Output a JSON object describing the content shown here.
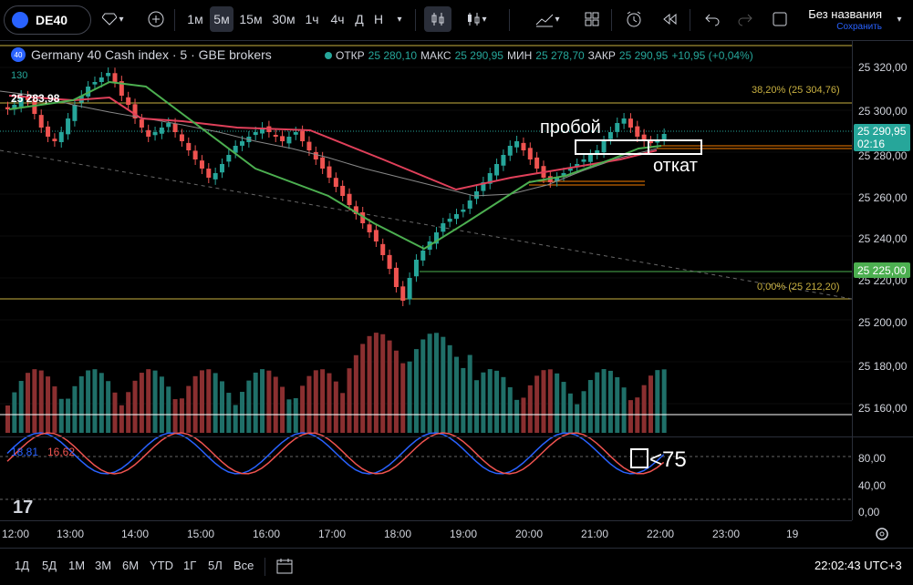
{
  "toolbar": {
    "symbol": "DE40",
    "intervals": [
      "1м",
      "5м",
      "15м",
      "30м",
      "1ч",
      "4ч",
      "Д",
      "Н"
    ],
    "active_interval": "5м",
    "layout_title": "Без названия",
    "save_label": "Сохранить"
  },
  "legend": {
    "icon_text": "40",
    "name": "Germany 40 Cash index · 5 · GBE brokers",
    "open_label": "ОТКР",
    "open": "25 280,10",
    "high_label": "МАКС",
    "high": "25 290,95",
    "low_label": "МИН",
    "low": "25 278,70",
    "close_label": "ЗАКР",
    "close": "25 290,95",
    "change": "+10,95 (+0,04%)",
    "subvalue": "130",
    "cursor_price": "25 283,98"
  },
  "price_axis": {
    "labels": [
      "25 320,00",
      "25 300,00",
      "25 280,00",
      "25 260,00",
      "25 240,00",
      "25 220,00",
      "25 200,00",
      "25 180,00",
      "25 160,00"
    ],
    "current_price": "25 290,95",
    "countdown": "02:16",
    "level_tag": "25 225,00",
    "stoch_labels": [
      "80,00",
      "40,00",
      "0,00"
    ]
  },
  "fib": {
    "upper": "38,20% (25 304,76)",
    "lower": "0,00% (25 212,20)"
  },
  "stoch": {
    "k": "18,81",
    "d": "16,62"
  },
  "annotations": {
    "breakout": "пробой",
    "pullback": "откат",
    "stoch_note": "<75"
  },
  "time_axis": [
    "12:00",
    "13:00",
    "14:00",
    "15:00",
    "16:00",
    "17:00",
    "18:00",
    "19:00",
    "20:00",
    "21:00",
    "22:00",
    "23:00",
    "19"
  ],
  "bottom": {
    "ranges": [
      "1Д",
      "5Д",
      "1М",
      "3М",
      "6М",
      "YTD",
      "1Г",
      "5Л",
      "Все"
    ],
    "clock": "22:02:43 UTC+3"
  },
  "colors": {
    "up": "#26a69a",
    "down": "#ef5350",
    "accent": "#2962ff"
  }
}
